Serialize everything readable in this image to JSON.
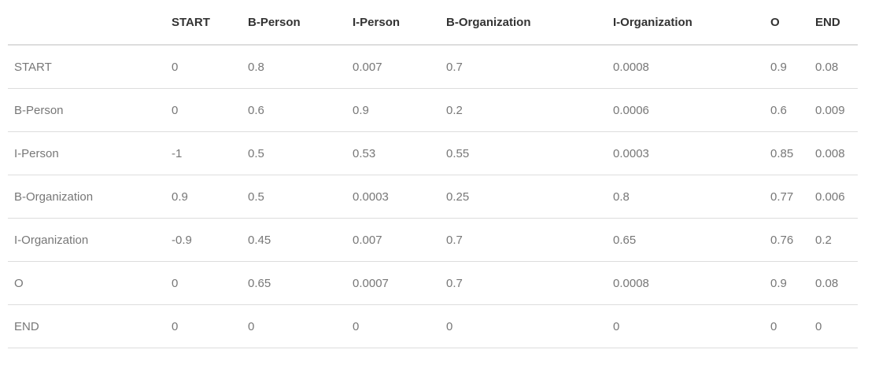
{
  "table": {
    "header": [
      "START",
      "B-Person",
      "I-Person",
      "B-Organization",
      "I-Organization",
      "O",
      "END"
    ],
    "rows": [
      {
        "label": "START",
        "cells": [
          "0",
          "0.8",
          "0.007",
          "0.7",
          "0.0008",
          "0.9",
          "0.08"
        ]
      },
      {
        "label": "B-Person",
        "cells": [
          "0",
          "0.6",
          "0.9",
          "0.2",
          "0.0006",
          "0.6",
          "0.009"
        ]
      },
      {
        "label": "I-Person",
        "cells": [
          "-1",
          "0.5",
          "0.53",
          "0.55",
          "0.0003",
          "0.85",
          "0.008"
        ]
      },
      {
        "label": "B-Organization",
        "cells": [
          "0.9",
          "0.5",
          "0.0003",
          "0.25",
          "0.8",
          "0.77",
          "0.006"
        ]
      },
      {
        "label": "I-Organization",
        "cells": [
          "-0.9",
          "0.45",
          "0.007",
          "0.7",
          "0.65",
          "0.76",
          "0.2"
        ]
      },
      {
        "label": "O",
        "cells": [
          "0",
          "0.65",
          "0.0007",
          "0.7",
          "0.0008",
          "0.9",
          "0.08"
        ]
      },
      {
        "label": "END",
        "cells": [
          "0",
          "0",
          "0",
          "0",
          "0",
          "0",
          "0"
        ]
      }
    ]
  }
}
